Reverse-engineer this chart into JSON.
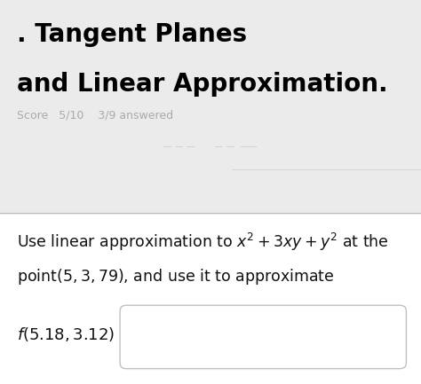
{
  "title_line1": ". Tangent Planes",
  "title_line2": "and Linear Approximation.",
  "score_text": "Score   5/10    3/9 answered",
  "body_text_line1": "Use linear approximation to $x^2 + 3xy + y^2$ at the",
  "body_text_line2": "point$(5, 3, 79)$, and use it to approximate",
  "input_label": "$\\it{f}$(5.18, 3.12) =",
  "bg_color": "#e8e8e8",
  "top_bg_color": "#dcdcdc",
  "white_color": "#ffffff",
  "title_color": "#000000",
  "body_color": "#111111",
  "score_color": "#aaaaaa",
  "sep_color": "#bbbbbb",
  "input_box_border": "#c0c0c0",
  "title_fontsize": 20,
  "body_fontsize": 12.5,
  "score_fontsize": 9,
  "label_fontsize": 13,
  "fig_width": 4.74,
  "fig_height": 4.33,
  "dpi": 100
}
